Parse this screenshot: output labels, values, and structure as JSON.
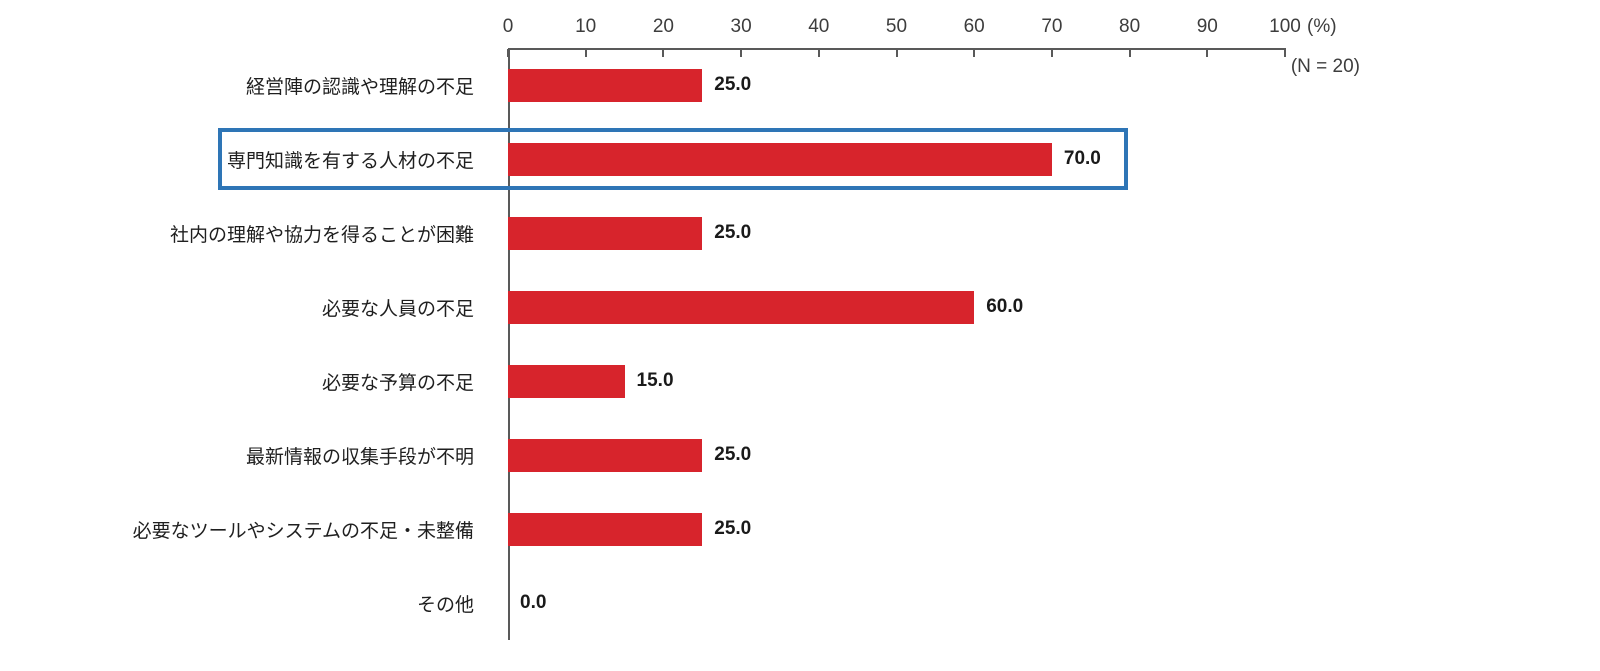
{
  "chart_data": {
    "type": "bar",
    "orientation": "horizontal",
    "title": "",
    "categories": [
      "経営陣の認識や理解の不足",
      "専門知識を有する人材の不足",
      "社内の理解や協力を得ることが困難",
      "必要な人員の不足",
      "必要な予算の不足",
      "最新情報の収集手段が不明",
      "必要なツールやシステムの不足・未整備",
      "その他"
    ],
    "values": [
      25.0,
      70.0,
      25.0,
      60.0,
      15.0,
      25.0,
      25.0,
      0.0
    ],
    "value_labels": [
      "25.0",
      "70.0",
      "25.0",
      "60.0",
      "15.0",
      "25.0",
      "25.0",
      "0.0"
    ],
    "highlighted_category_index": 1,
    "highlighted_category": "専門知識を有する人材の不足",
    "xlim": [
      0,
      100
    ],
    "x_tick_labels": [
      "0",
      "10",
      "20",
      "30",
      "40",
      "50",
      "60",
      "70",
      "80",
      "90",
      "100"
    ],
    "x_unit_label": "(%)",
    "annotation": "(N = 20)",
    "bar_color": "#d7242c",
    "highlight_box_color": "#2e75b6",
    "axis_color": "#595959",
    "grid": "off",
    "legend": "none"
  }
}
